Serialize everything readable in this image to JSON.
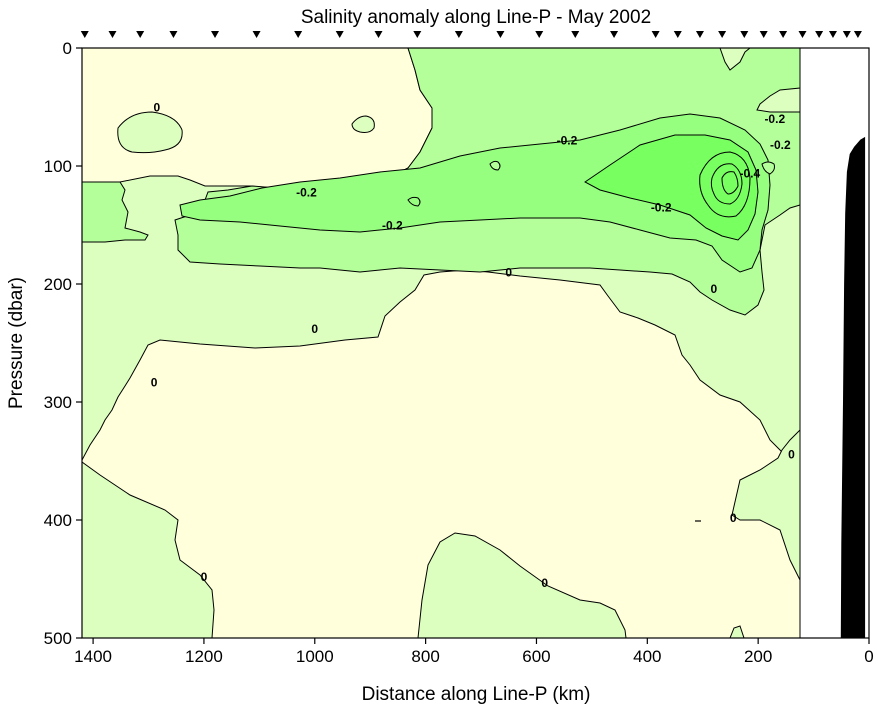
{
  "chart_data": {
    "type": "contour",
    "title": "Salinity anomaly along Line-P - May 2002",
    "xlabel": "Distance along Line-P (km)",
    "ylabel": "Pressure (dbar)",
    "xlim": [
      1420,
      0
    ],
    "ylim": [
      500,
      0
    ],
    "x_ticks": [
      1400,
      1200,
      1000,
      800,
      600,
      400,
      200,
      0
    ],
    "y_ticks": [
      0,
      100,
      200,
      300,
      400,
      500
    ],
    "contour_levels": [
      0.2,
      0,
      -0.2,
      -0.4
    ],
    "fill_colors": {
      "above_0.2": "#ffffdc",
      "0_to_0.2": "#dcffc0",
      "-0.2_to_0": "#b4ff9a",
      "-0.4_to_-0.2": "#96ff80",
      "below_-0.4": "#78ff60"
    },
    "station_km": [
      1415,
      1365,
      1315,
      1255,
      1180,
      1105,
      1030,
      955,
      885,
      815,
      740,
      665,
      595,
      530,
      460,
      385,
      345,
      305,
      265,
      225,
      190,
      155,
      120,
      90,
      65,
      40,
      20
    ],
    "no_data_region": {
      "x": [
        120,
        0
      ],
      "y": [
        0,
        500
      ]
    },
    "bottom_profile": [
      {
        "x": 50,
        "y": 500
      },
      {
        "x": 49,
        "y": 420
      },
      {
        "x": 46,
        "y": 300
      },
      {
        "x": 44,
        "y": 200
      },
      {
        "x": 42,
        "y": 140
      },
      {
        "x": 39,
        "y": 105
      },
      {
        "x": 34,
        "y": 90
      },
      {
        "x": 26,
        "y": 84
      },
      {
        "x": 15,
        "y": 78
      },
      {
        "x": 8,
        "y": 76
      },
      {
        "x": 8,
        "y": 500
      }
    ],
    "contour_labels": [
      {
        "x": 1285,
        "y": 52,
        "text": "0"
      },
      {
        "x": 650,
        "y": 192,
        "text": "0"
      },
      {
        "x": 1000,
        "y": 240,
        "text": "0"
      },
      {
        "x": 1290,
        "y": 285,
        "text": "0"
      },
      {
        "x": 280,
        "y": 206,
        "text": "0"
      },
      {
        "x": 140,
        "y": 346,
        "text": "0"
      },
      {
        "x": 245,
        "y": 400,
        "text": "0"
      },
      {
        "x": 1200,
        "y": 450,
        "text": "0"
      },
      {
        "x": 585,
        "y": 455,
        "text": "0"
      },
      {
        "x": 545,
        "y": 80,
        "text": "-0.2"
      },
      {
        "x": 170,
        "y": 62,
        "text": "-0.2"
      },
      {
        "x": 160,
        "y": 84,
        "text": "-0.2"
      },
      {
        "x": 1015,
        "y": 124,
        "text": "-0.2"
      },
      {
        "x": 860,
        "y": 152,
        "text": "-0.2"
      },
      {
        "x": 375,
        "y": 137,
        "text": "-0.2"
      },
      {
        "x": 215,
        "y": 108,
        "text": "-0.4"
      }
    ]
  }
}
